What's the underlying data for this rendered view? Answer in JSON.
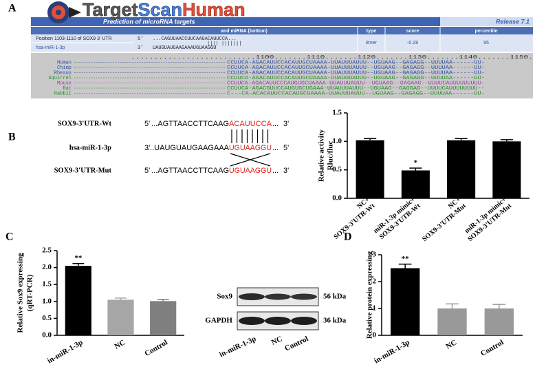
{
  "panel_labels": [
    "A",
    "B",
    "C",
    "D"
  ],
  "targetscan": {
    "logo": [
      "Target",
      "Scan",
      "Human"
    ],
    "tagline": "Prediction of microRNA targets",
    "release": "Release 7.1",
    "table": {
      "headers": [
        "and miRNA (bottom)",
        "type",
        "score",
        "percentile"
      ],
      "target_row": {
        "name": "Position 1103-1110 of SOX9 3' UTR",
        "end": "5'",
        "sequence": "...CAGUUAACCUUCAAGACAUUCCA...",
        "type": "8mer",
        "score": "-0.28",
        "percentile": "95"
      },
      "pairing": "||||   |||||||",
      "mirna_row": {
        "name": "hsa-miR-1-3p",
        "end": "3'",
        "sequence": "UAUGUAUGAAGAAAUGUAAGGU"
      }
    },
    "alignment": {
      "ruler": "...........................1100.......1110.......1120.......1130.......1140.......1150.",
      "rows": [
        {
          "species": "Human",
          "color": "#2e4fa8",
          "sequence": "CCUUCA-AGACAUUCCACAUUGCUAAAA-UUAUUUAUUU--UGUAAG--GAGAGG--UUUUAA------UU-"
        },
        {
          "species": "Chimp",
          "color": "#2e4fa8",
          "sequence": "CCUUCA-AGACAUUCCACAUUGCUAAAA-UUAUUUAUUU--UGUAAG--GAGAGG--UUUUAA------UU-"
        },
        {
          "species": "Rhesus",
          "color": "#2e4fa8",
          "sequence": "CCUUCA-AGACAUUCCACAUUGCUAAAA-UUAUUUAUUU--UGUAAG--GAGAGG--UUUUAA------UU-"
        },
        {
          "species": "Squirrel",
          "color": "#2a8a2a",
          "sequence": "CCUUCA-AGACAUUCCACAUUGCUAAAA-UUAUUUAUUU--UGUAAG--GAGAGG--UUUUAA------UU-"
        },
        {
          "species": "Mouse",
          "color": "#9b3aa8",
          "sequence": "CCUUCA-AGACAUUCCCAUGUGCUAAAA-UUAUUUAUUU--UGUAAG--GAGAAG--UUUUCAUUUUUUUUU-"
        },
        {
          "species": "Rat",
          "color": "#2a8a2a",
          "sequence": "CCUUCA-AGACGUUCCAUGUGCUGAAA-UUAUUUAUUU--UGUAAG--GAGGAG--UUUUCAUUUUUUUU--"
        },
        {
          "species": "Rabbit",
          "color": "#2a8a2a",
          "sequence": "C---CA-ACACAUUCCACAUGCUAAAA-UUAUUUAUUU--UGUAAG--GAGAGG--UUUUAA------UU-"
        }
      ]
    }
  },
  "sequence_diagram": {
    "rows": [
      {
        "label": "SOX9-3'UTR-Wt",
        "left_end": "5'",
        "sequence": "...AGTTAACCTTCAAG",
        "site": "ACAUUCCA",
        "tail": "...",
        "right_end": "3'"
      },
      {
        "label": "hsa-miR-1-3p",
        "left_end": "3'",
        "sequence": "...UAUGUAUGAAGAAA",
        "site": "UGUAAGGU",
        "tail": "...",
        "right_end": "5'"
      },
      {
        "label": "SOX9-3'UTR-Mut",
        "left_end": "5'",
        "sequence": "...AGTTAACCTTCAAG",
        "site": "UGUAAGGU",
        "tail": "...",
        "right_end": "3'"
      }
    ]
  },
  "western_blot": {
    "proteins": [
      "Sox9",
      "GAPDH"
    ],
    "sizes": [
      "56 kDa",
      "36 kDa"
    ],
    "lanes": [
      "in-miR-1-3p",
      "NC",
      "Control"
    ]
  },
  "chart_data": [
    {
      "type": "bar",
      "y_label": [
        "Relative activity",
        "Rluc/fluc"
      ],
      "categories": [
        [
          "NC+",
          "SOX9-3'UTR-Wt"
        ],
        [
          "miR-1-3p mimic+",
          "SOX9-3'UTR-Wt"
        ],
        [
          "NC+",
          "SOX9-3'UTR-Mut"
        ],
        [
          "miR-1-3p mimic+",
          "SOX9-3'UTR-Mut"
        ]
      ],
      "values": [
        1.02,
        0.49,
        1.02,
        1.0
      ],
      "errors": [
        0.03,
        0.04,
        0.03,
        0.03
      ],
      "colors": [
        "#000000",
        "#000000",
        "#000000",
        "#000000"
      ],
      "annotations": [
        null,
        "*",
        null,
        null
      ],
      "ylim": [
        0,
        1.5
      ],
      "yticks": [
        {
          "value": 0,
          "label": "0.0"
        },
        0.5,
        {
          "value": 1,
          "label": "1.0"
        },
        1.5
      ]
    },
    {
      "type": "bar",
      "y_label": [
        "Relative Sox9 expressing",
        "(qRT-PCR)"
      ],
      "categories": [
        [
          "in-miR-1-3p"
        ],
        [
          "NC"
        ],
        [
          "Control"
        ]
      ],
      "values": [
        2.05,
        1.05,
        1.01
      ],
      "errors": [
        0.07,
        0.05,
        0.05
      ],
      "colors": [
        "#000000",
        "#a6a6a6",
        "#7f7f7f"
      ],
      "annotations": [
        "**",
        null,
        null
      ],
      "ylim": [
        0,
        2.5
      ],
      "yticks": [
        {
          "value": 0,
          "label": "0.0"
        },
        0.5,
        {
          "value": 1,
          "label": "1.0"
        },
        1.5,
        {
          "value": 2,
          "label": "2.0"
        },
        2.5
      ]
    },
    {
      "type": "bar",
      "y_label": [
        "Relative protein expressing"
      ],
      "categories": [
        [
          "in-miR-1-3p"
        ],
        [
          "NC"
        ],
        [
          "Control"
        ]
      ],
      "values": [
        2.5,
        1.0,
        1.0
      ],
      "errors": [
        0.15,
        0.17,
        0.15
      ],
      "colors": [
        "#000000",
        "#999999",
        "#999999"
      ],
      "annotations": [
        "**",
        null,
        null
      ],
      "ylim": [
        0,
        3
      ],
      "yticks": [
        0,
        1,
        2,
        3
      ]
    }
  ]
}
